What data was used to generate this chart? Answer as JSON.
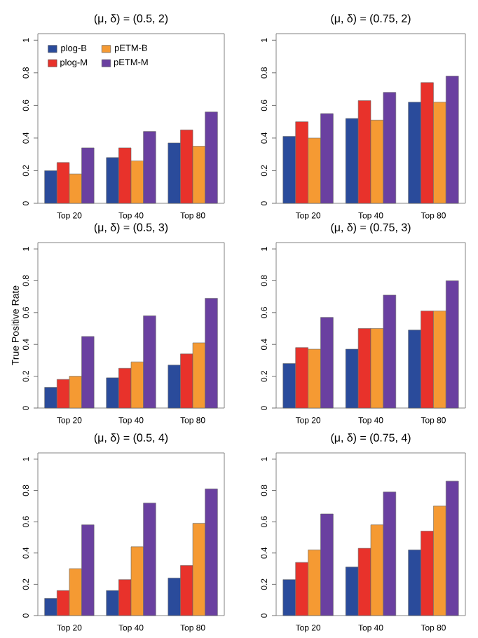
{
  "chart_data": [
    {
      "type": "bar",
      "title": "(μ, δ) = (0.5, 2)",
      "categories": [
        "Top 20",
        "Top 40",
        "Top 80"
      ],
      "ylim": [
        0,
        1.04
      ],
      "yticks": [
        0,
        0.2,
        0.4,
        0.6,
        0.8,
        1
      ],
      "legend": "top left",
      "series": [
        {
          "name": "plog-B",
          "color": "#2a4b9b",
          "values": [
            0.2,
            0.28,
            0.37
          ]
        },
        {
          "name": "plog-M",
          "color": "#e8322b",
          "values": [
            0.25,
            0.34,
            0.45
          ]
        },
        {
          "name": "pETM-B",
          "color": "#f59a33",
          "values": [
            0.18,
            0.26,
            0.35
          ]
        },
        {
          "name": "pETM-M",
          "color": "#6a40a0",
          "values": [
            0.34,
            0.44,
            0.56
          ]
        }
      ]
    },
    {
      "type": "bar",
      "title": "(μ, δ) = (0.75, 2)",
      "categories": [
        "Top 20",
        "Top 40",
        "Top 80"
      ],
      "ylim": [
        0,
        1.04
      ],
      "yticks": [
        0,
        0.2,
        0.4,
        0.6,
        0.8,
        1
      ],
      "series": [
        {
          "color": "#2a4b9b",
          "values": [
            0.41,
            0.52,
            0.62
          ]
        },
        {
          "color": "#e8322b",
          "values": [
            0.5,
            0.63,
            0.74
          ]
        },
        {
          "color": "#f59a33",
          "values": [
            0.4,
            0.51,
            0.62
          ]
        },
        {
          "color": "#6a40a0",
          "values": [
            0.55,
            0.68,
            0.78
          ]
        }
      ]
    },
    {
      "type": "bar",
      "title": "(μ, δ) = (0.5, 3)",
      "ylabel": "True Positive Rate",
      "categories": [
        "Top 20",
        "Top 40",
        "Top 80"
      ],
      "ylim": [
        0,
        1.04
      ],
      "yticks": [
        0,
        0.2,
        0.4,
        0.6,
        0.8,
        1
      ],
      "series": [
        {
          "color": "#2a4b9b",
          "values": [
            0.13,
            0.19,
            0.27
          ]
        },
        {
          "color": "#e8322b",
          "values": [
            0.18,
            0.25,
            0.34
          ]
        },
        {
          "color": "#f59a33",
          "values": [
            0.2,
            0.29,
            0.41
          ]
        },
        {
          "color": "#6a40a0",
          "values": [
            0.45,
            0.58,
            0.69
          ]
        }
      ]
    },
    {
      "type": "bar",
      "title": "(μ, δ) = (0.75, 3)",
      "categories": [
        "Top 20",
        "Top 40",
        "Top 80"
      ],
      "ylim": [
        0,
        1.04
      ],
      "yticks": [
        0,
        0.2,
        0.4,
        0.6,
        0.8,
        1
      ],
      "series": [
        {
          "color": "#2a4b9b",
          "values": [
            0.28,
            0.37,
            0.49
          ]
        },
        {
          "color": "#e8322b",
          "values": [
            0.38,
            0.5,
            0.61
          ]
        },
        {
          "color": "#f59a33",
          "values": [
            0.37,
            0.5,
            0.61
          ]
        },
        {
          "color": "#6a40a0",
          "values": [
            0.57,
            0.71,
            0.8
          ]
        }
      ]
    },
    {
      "type": "bar",
      "title": "(μ, δ) = (0.5, 4)",
      "categories": [
        "Top 20",
        "Top 40",
        "Top 80"
      ],
      "ylim": [
        0,
        1.04
      ],
      "yticks": [
        0,
        0.2,
        0.4,
        0.6,
        0.8,
        1
      ],
      "series": [
        {
          "color": "#2a4b9b",
          "values": [
            0.11,
            0.16,
            0.24
          ]
        },
        {
          "color": "#e8322b",
          "values": [
            0.16,
            0.23,
            0.32
          ]
        },
        {
          "color": "#f59a33",
          "values": [
            0.3,
            0.44,
            0.59
          ]
        },
        {
          "color": "#6a40a0",
          "values": [
            0.58,
            0.72,
            0.81
          ]
        }
      ]
    },
    {
      "type": "bar",
      "title": "(μ, δ) = (0.75, 4)",
      "categories": [
        "Top 20",
        "Top 40",
        "Top 80"
      ],
      "ylim": [
        0,
        1.04
      ],
      "yticks": [
        0,
        0.2,
        0.4,
        0.6,
        0.8,
        1
      ],
      "series": [
        {
          "color": "#2a4b9b",
          "values": [
            0.23,
            0.31,
            0.42
          ]
        },
        {
          "color": "#e8322b",
          "values": [
            0.34,
            0.43,
            0.54
          ]
        },
        {
          "color": "#f59a33",
          "values": [
            0.42,
            0.58,
            0.7
          ]
        },
        {
          "color": "#6a40a0",
          "values": [
            0.65,
            0.79,
            0.86
          ]
        }
      ]
    }
  ]
}
